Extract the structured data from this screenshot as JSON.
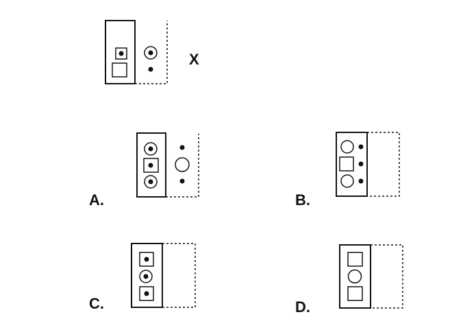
{
  "question": {
    "symbol": "X"
  },
  "options": [
    {
      "label": "A."
    },
    {
      "label": "B."
    },
    {
      "label": "C."
    },
    {
      "label": "D."
    }
  ],
  "colors": {
    "ink": "#111111",
    "paper": "#ffffff"
  }
}
